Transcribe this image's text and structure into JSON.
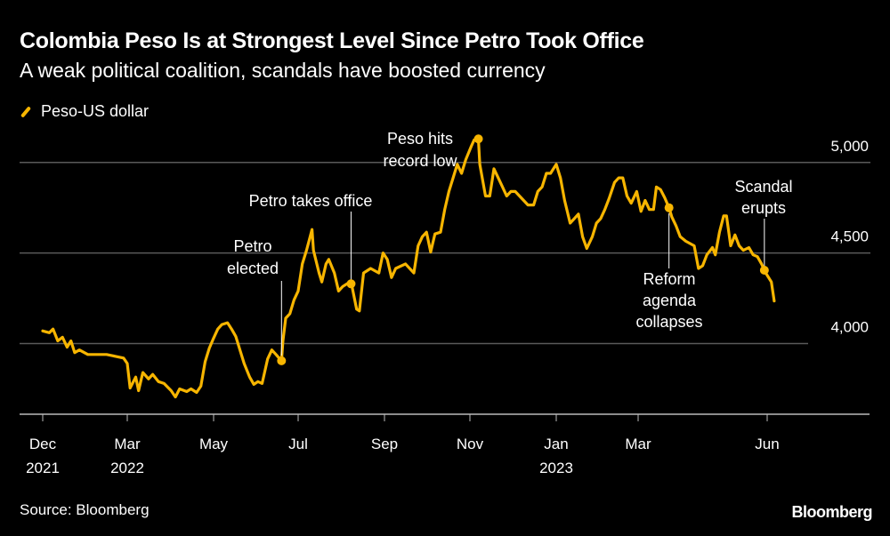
{
  "header": {
    "title": "Colombia Peso Is at Strongest Level Since Petro Took Office",
    "subtitle": "A weak political coalition, scandals have boosted currency"
  },
  "footer": {
    "source": "Source: Bloomberg",
    "logo": "Bloomberg"
  },
  "chart_data": {
    "type": "line",
    "title": "Colombia Peso Is at Strongest Level Since Petro Took Office",
    "subtitle": "A weak political coalition, scandals have boosted currency",
    "legend": "top-left",
    "grid": true,
    "ylim": [
      3610,
      5200
    ],
    "y_ticks": [
      {
        "value": 4000,
        "label": "4,000"
      },
      {
        "value": 4500,
        "label": "4,500"
      },
      {
        "value": 5000,
        "label": "5,000"
      }
    ],
    "x_ticks": [
      {
        "date": "2021-12-01",
        "label": "Dec",
        "label2": "2021"
      },
      {
        "date": "2022-03-01",
        "label": "Mar",
        "label2": "2022"
      },
      {
        "date": "2022-05-01",
        "label": "May",
        "label2": ""
      },
      {
        "date": "2022-07-01",
        "label": "Jul",
        "label2": ""
      },
      {
        "date": "2022-09-01",
        "label": "Sep",
        "label2": ""
      },
      {
        "date": "2022-11-01",
        "label": "Nov",
        "label2": ""
      },
      {
        "date": "2023-01-01",
        "label": "Jan",
        "label2": "2023"
      },
      {
        "date": "2023-03-01",
        "label": "Mar",
        "label2": ""
      },
      {
        "date": "2023-06-01",
        "label": "Jun",
        "label2": ""
      }
    ],
    "colors": {
      "line": "#f7b500",
      "grid": "#5a5a5a",
      "axis": "#bbbbbb"
    },
    "series": [
      {
        "name": "Peso-US dollar",
        "points": [
          [
            "2021-12-01",
            4070
          ],
          [
            "2021-12-08",
            4060
          ],
          [
            "2021-12-12",
            4080
          ],
          [
            "2021-12-17",
            4015
          ],
          [
            "2021-12-22",
            4035
          ],
          [
            "2021-12-27",
            3980
          ],
          [
            "2021-12-31",
            4015
          ],
          [
            "2022-01-04",
            3950
          ],
          [
            "2022-01-09",
            3965
          ],
          [
            "2022-01-18",
            3940
          ],
          [
            "2022-01-28",
            3940
          ],
          [
            "2022-02-07",
            3940
          ],
          [
            "2022-02-16",
            3930
          ],
          [
            "2022-02-25",
            3920
          ],
          [
            "2022-03-01",
            3890
          ],
          [
            "2022-03-03",
            3755
          ],
          [
            "2022-03-07",
            3815
          ],
          [
            "2022-03-09",
            3740
          ],
          [
            "2022-03-12",
            3840
          ],
          [
            "2022-03-16",
            3805
          ],
          [
            "2022-03-19",
            3830
          ],
          [
            "2022-03-23",
            3790
          ],
          [
            "2022-03-27",
            3780
          ],
          [
            "2022-04-01",
            3740
          ],
          [
            "2022-04-04",
            3705
          ],
          [
            "2022-04-07",
            3750
          ],
          [
            "2022-04-12",
            3735
          ],
          [
            "2022-04-15",
            3750
          ],
          [
            "2022-04-19",
            3730
          ],
          [
            "2022-04-22",
            3765
          ],
          [
            "2022-04-25",
            3900
          ],
          [
            "2022-04-28",
            3975
          ],
          [
            "2022-05-01",
            4030
          ],
          [
            "2022-05-04",
            4080
          ],
          [
            "2022-05-07",
            4105
          ],
          [
            "2022-05-11",
            4115
          ],
          [
            "2022-05-14",
            4080
          ],
          [
            "2022-05-17",
            4040
          ],
          [
            "2022-05-20",
            3965
          ],
          [
            "2022-05-23",
            3890
          ],
          [
            "2022-05-27",
            3815
          ],
          [
            "2022-05-30",
            3775
          ],
          [
            "2022-06-02",
            3790
          ],
          [
            "2022-06-05",
            3780
          ],
          [
            "2022-06-09",
            3915
          ],
          [
            "2022-06-12",
            3965
          ],
          [
            "2022-06-15",
            3940
          ],
          [
            "2022-06-19",
            3905
          ],
          [
            "2022-06-20",
            4015
          ],
          [
            "2022-06-22",
            4140
          ],
          [
            "2022-06-25",
            4165
          ],
          [
            "2022-06-28",
            4240
          ],
          [
            "2022-07-01",
            4290
          ],
          [
            "2022-07-04",
            4440
          ],
          [
            "2022-07-07",
            4515
          ],
          [
            "2022-07-11",
            4630
          ],
          [
            "2022-07-12",
            4515
          ],
          [
            "2022-07-16",
            4390
          ],
          [
            "2022-07-18",
            4340
          ],
          [
            "2022-07-21",
            4440
          ],
          [
            "2022-07-23",
            4465
          ],
          [
            "2022-07-27",
            4390
          ],
          [
            "2022-07-30",
            4290
          ],
          [
            "2022-08-02",
            4315
          ],
          [
            "2022-08-05",
            4330
          ],
          [
            "2022-08-08",
            4340
          ],
          [
            "2022-08-12",
            4190
          ],
          [
            "2022-08-14",
            4180
          ],
          [
            "2022-08-17",
            4390
          ],
          [
            "2022-08-22",
            4415
          ],
          [
            "2022-08-28",
            4390
          ],
          [
            "2022-08-31",
            4500
          ],
          [
            "2022-09-03",
            4465
          ],
          [
            "2022-09-06",
            4365
          ],
          [
            "2022-09-09",
            4415
          ],
          [
            "2022-09-16",
            4440
          ],
          [
            "2022-09-22",
            4390
          ],
          [
            "2022-09-25",
            4540
          ],
          [
            "2022-09-28",
            4590
          ],
          [
            "2022-10-01",
            4615
          ],
          [
            "2022-10-04",
            4505
          ],
          [
            "2022-10-07",
            4605
          ],
          [
            "2022-10-11",
            4615
          ],
          [
            "2022-10-14",
            4740
          ],
          [
            "2022-10-17",
            4840
          ],
          [
            "2022-10-20",
            4915
          ],
          [
            "2022-10-23",
            4990
          ],
          [
            "2022-10-26",
            4940
          ],
          [
            "2022-10-29",
            5015
          ],
          [
            "2022-11-02",
            5090
          ],
          [
            "2022-11-04",
            5125
          ],
          [
            "2022-11-07",
            5130
          ],
          [
            "2022-11-08",
            4990
          ],
          [
            "2022-11-12",
            4815
          ],
          [
            "2022-11-15",
            4815
          ],
          [
            "2022-11-18",
            4965
          ],
          [
            "2022-11-21",
            4915
          ],
          [
            "2022-11-24",
            4865
          ],
          [
            "2022-11-27",
            4815
          ],
          [
            "2022-11-30",
            4840
          ],
          [
            "2022-12-03",
            4840
          ],
          [
            "2022-12-06",
            4815
          ],
          [
            "2022-12-09",
            4790
          ],
          [
            "2022-12-12",
            4765
          ],
          [
            "2022-12-16",
            4765
          ],
          [
            "2022-12-19",
            4840
          ],
          [
            "2022-12-22",
            4865
          ],
          [
            "2022-12-25",
            4940
          ],
          [
            "2022-12-28",
            4940
          ],
          [
            "2023-01-01",
            4990
          ],
          [
            "2023-01-04",
            4915
          ],
          [
            "2023-01-07",
            4790
          ],
          [
            "2023-01-11",
            4665
          ],
          [
            "2023-01-14",
            4690
          ],
          [
            "2023-01-17",
            4715
          ],
          [
            "2023-01-20",
            4590
          ],
          [
            "2023-01-23",
            4525
          ],
          [
            "2023-01-27",
            4590
          ],
          [
            "2023-01-30",
            4665
          ],
          [
            "2023-02-02",
            4690
          ],
          [
            "2023-02-05",
            4740
          ],
          [
            "2023-02-08",
            4800
          ],
          [
            "2023-02-12",
            4890
          ],
          [
            "2023-02-15",
            4915
          ],
          [
            "2023-02-18",
            4915
          ],
          [
            "2023-02-21",
            4815
          ],
          [
            "2023-02-24",
            4775
          ],
          [
            "2023-02-28",
            4840
          ],
          [
            "2023-03-03",
            4730
          ],
          [
            "2023-03-06",
            4790
          ],
          [
            "2023-03-09",
            4740
          ],
          [
            "2023-03-12",
            4740
          ],
          [
            "2023-03-14",
            4865
          ],
          [
            "2023-03-17",
            4850
          ],
          [
            "2023-03-20",
            4805
          ],
          [
            "2023-03-23",
            4750
          ],
          [
            "2023-03-25",
            4700
          ],
          [
            "2023-03-28",
            4650
          ],
          [
            "2023-03-31",
            4590
          ],
          [
            "2023-04-04",
            4565
          ],
          [
            "2023-04-10",
            4540
          ],
          [
            "2023-04-13",
            4415
          ],
          [
            "2023-04-16",
            4430
          ],
          [
            "2023-04-19",
            4490
          ],
          [
            "2023-04-23",
            4530
          ],
          [
            "2023-04-25",
            4490
          ],
          [
            "2023-04-28",
            4615
          ],
          [
            "2023-05-01",
            4705
          ],
          [
            "2023-05-03",
            4705
          ],
          [
            "2023-05-06",
            4540
          ],
          [
            "2023-05-09",
            4600
          ],
          [
            "2023-05-12",
            4540
          ],
          [
            "2023-05-15",
            4515
          ],
          [
            "2023-05-19",
            4530
          ],
          [
            "2023-05-22",
            4490
          ],
          [
            "2023-05-25",
            4480
          ],
          [
            "2023-05-28",
            4440
          ],
          [
            "2023-05-31",
            4390
          ],
          [
            "2023-06-04",
            4340
          ],
          [
            "2023-06-06",
            4235
          ]
        ]
      }
    ],
    "annotations": [
      {
        "lines": [
          "Petro",
          "elected"
        ],
        "date": "2022-06-19",
        "value": 3905
      },
      {
        "lines": [
          "Petro takes office"
        ],
        "date": "2022-08-08",
        "value": 4330
      },
      {
        "lines": [
          "Peso hits",
          "record low"
        ],
        "date": "2022-11-07",
        "value": 5130
      },
      {
        "lines": [
          "Reform",
          "agenda",
          "collapses"
        ],
        "date": "2023-03-23",
        "value": 4750
      },
      {
        "lines": [
          "Scandal",
          "erupts"
        ],
        "date": "2023-05-30",
        "value": 4405
      }
    ]
  }
}
